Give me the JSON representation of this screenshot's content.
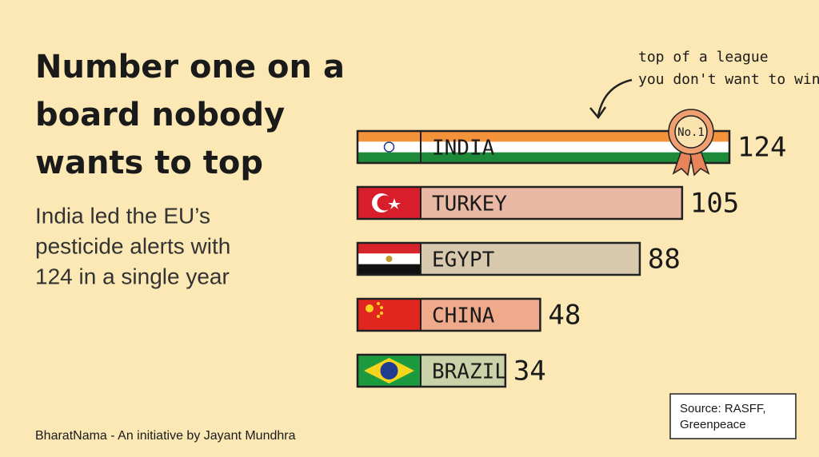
{
  "chart_data": {
    "type": "hbar",
    "title": [
      "Number one on a",
      "board nobody",
      "wants to top"
    ],
    "subtitle": [
      "India led the EU’s",
      "pesticide alerts with",
      "124 in a single year"
    ],
    "annotation": [
      "top of a league",
      "you don't want to win"
    ],
    "badge": "No.1",
    "categories": [
      "INDIA",
      "TURKEY",
      "EGYPT",
      "CHINA",
      "BRAZIL"
    ],
    "values": [
      124,
      105,
      88,
      48,
      34
    ],
    "colors": [
      "tricolor",
      "#e9b9a6",
      "#d8c9ae",
      "#efaa8c",
      "#c9d2a8"
    ],
    "source": [
      "Source: RASFF,",
      "Greenpeace"
    ],
    "footer": "BharatNama - An initiative by Jayant Mundhra"
  }
}
